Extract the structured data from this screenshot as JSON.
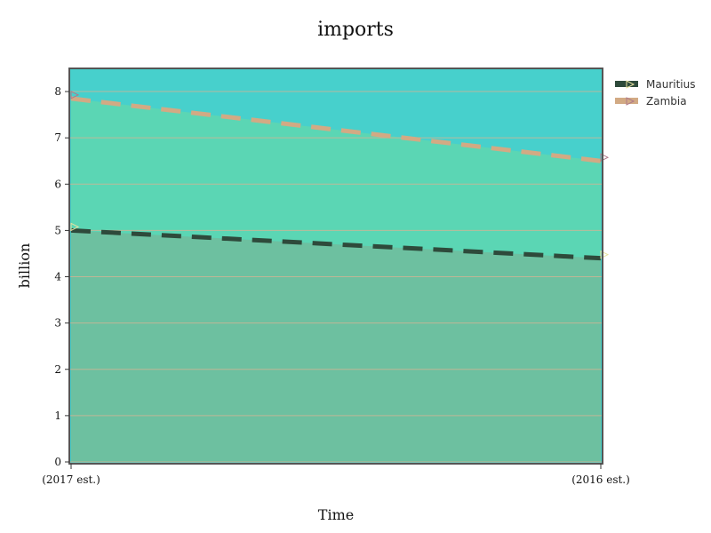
{
  "chart_data": {
    "type": "area",
    "title": "imports",
    "xlabel": "Time",
    "ylabel": "billion",
    "categories": [
      "(2017 est.)",
      "(2016 est.)"
    ],
    "ylim": [
      0,
      8.5
    ],
    "yticks": [
      0,
      1,
      2,
      3,
      4,
      5,
      6,
      7,
      8
    ],
    "grid": true,
    "legend_position": "top-right",
    "series": [
      {
        "name": "Mauritius",
        "values": [
          5.0,
          4.4
        ],
        "color": "#2e4a3b"
      },
      {
        "name": "Zambia",
        "values": [
          7.85,
          6.5
        ],
        "color": "#d2aa84"
      }
    ]
  },
  "colors": {
    "plot_background": "#47d0cc",
    "upper_band_fill": "#5bd6b4",
    "lower_band_fill": "#6dc0a0",
    "gridline": "#d4b494",
    "frame": "#555555"
  }
}
